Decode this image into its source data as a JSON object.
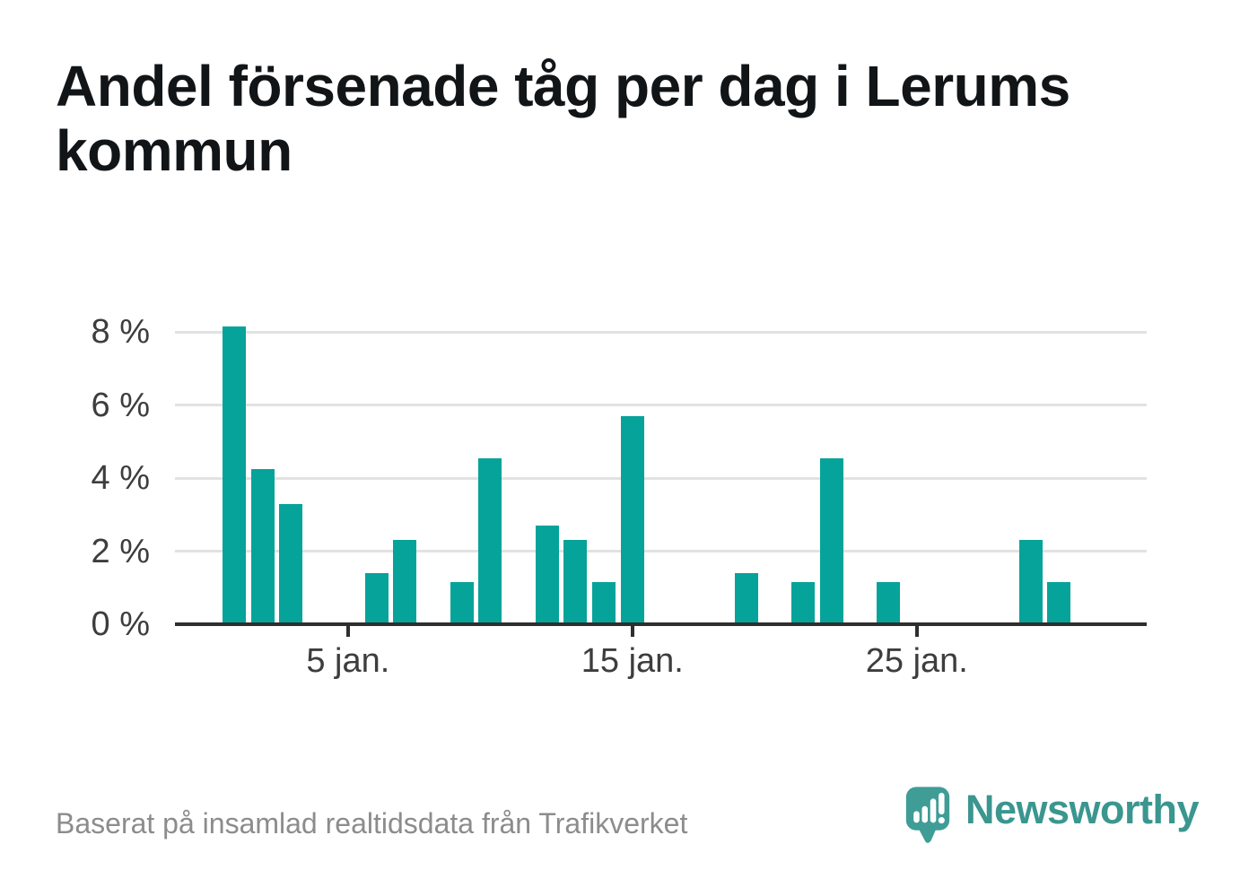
{
  "title": "Andel försenade tåg per dag i Lerums kommun",
  "footer": {
    "source_note": "Baserat på insamlad realtidsdata från Trafikverket",
    "brand_name": "Newsworthy"
  },
  "logo": {
    "icon": "newsworthy-speech-bubble-bar-chart-icon"
  },
  "colors": {
    "bar": "#06a39a",
    "axis": "#2e2e2e",
    "gridline": "#e2e2e2",
    "axis_label": "#3d3d3d",
    "title_text": "#121517",
    "source_text": "#8c8c8c",
    "brand_bubble": "#3f9d96",
    "brand_text": "#3a968f"
  },
  "chart_data": {
    "type": "bar",
    "title": "Andel försenade tåg per dag i Lerums kommun",
    "xlabel": "",
    "ylabel": "",
    "x_unit": "dag i januari",
    "x": [
      1,
      2,
      3,
      6,
      7,
      9,
      10,
      12,
      13,
      14,
      15,
      19,
      21,
      22,
      24,
      29,
      30
    ],
    "values": [
      8.15,
      4.25,
      3.3,
      1.4,
      2.3,
      1.15,
      4.55,
      2.7,
      2.3,
      1.15,
      5.7,
      1.4,
      1.15,
      4.55,
      1.15,
      2.3,
      1.15
    ],
    "x_domain_days": [
      1,
      31
    ],
    "ylim": [
      0,
      8.6
    ],
    "xticks": [
      {
        "day": 5,
        "label": "5 jan."
      },
      {
        "day": 15,
        "label": "15 jan."
      },
      {
        "day": 25,
        "label": "25 jan."
      }
    ],
    "yticks": [
      {
        "value": 0,
        "label": "0 %"
      },
      {
        "value": 2,
        "label": "2 %"
      },
      {
        "value": 4,
        "label": "4 %"
      },
      {
        "value": 6,
        "label": "6 %"
      },
      {
        "value": 8,
        "label": "8 %"
      }
    ],
    "grid": true,
    "legend_position": "none",
    "bar_color": "#06a39a"
  }
}
